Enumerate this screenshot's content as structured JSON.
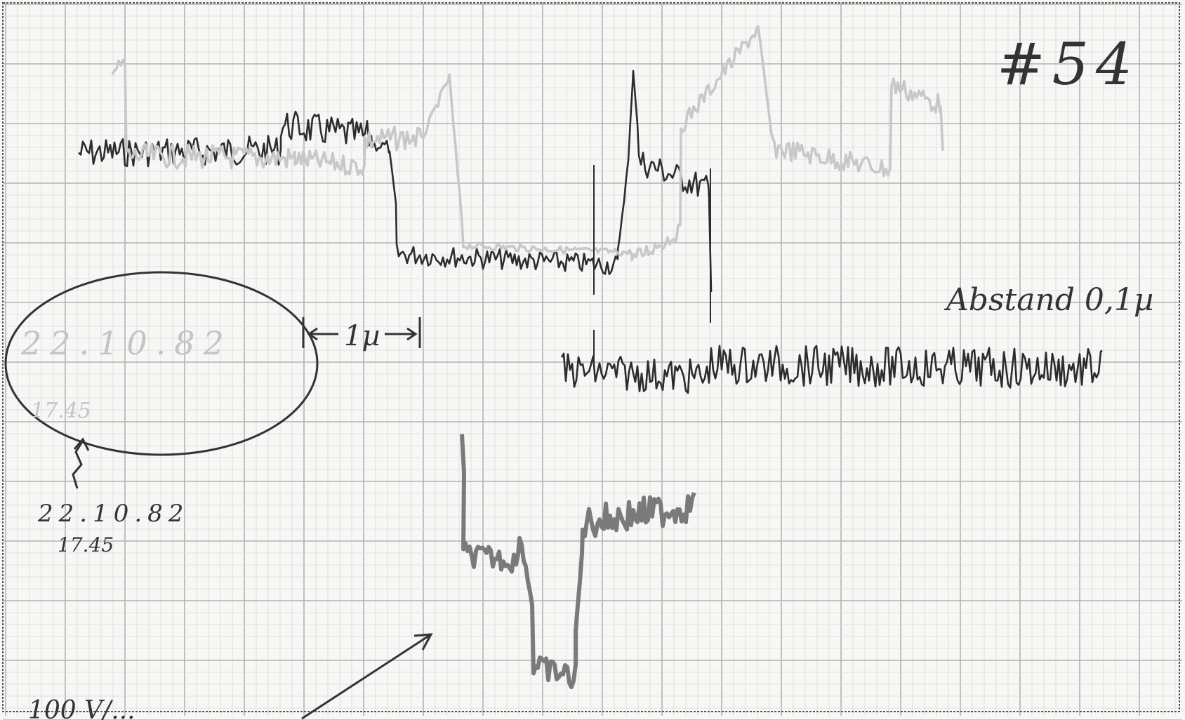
{
  "sheet": {
    "number": "#54",
    "scale_bar_label": "1µ",
    "spacing_note": "Abstand 0,1µ",
    "date": "22.10.82",
    "time": "17.45",
    "faded_date": "22.10.82",
    "faded_time": "17.45",
    "bottom_label": "100 V/..."
  },
  "colors": {
    "paper": "#f7f7f5",
    "grid_minor": "#d9d9d9",
    "grid_major": "#b2b2b2",
    "ink_dark": "#2c2c2c",
    "ink_mid": "#7a7a7a",
    "ink_faint": "#c8c8c8",
    "pen": "#3a3a3a"
  },
  "traces": [
    {
      "name": "upper-trace",
      "tone": "dark"
    },
    {
      "name": "upper-faint-trace",
      "tone": "faint"
    },
    {
      "name": "middle-trace",
      "tone": "dark"
    },
    {
      "name": "lower-trace",
      "tone": "mid"
    }
  ]
}
